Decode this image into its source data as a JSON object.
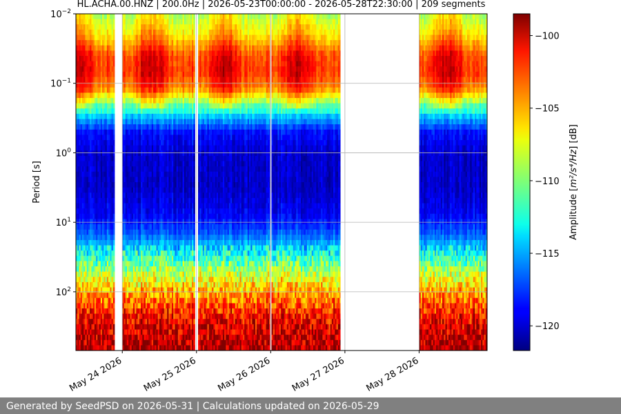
{
  "chart_data": {
    "type": "heatmap",
    "title": "HL.ACHA.00.HNZ | 200.0Hz | 2026-05-23T00:00:00 - 2026-05-28T22:30:00 | 209 segments",
    "ylabel": "Period [s]",
    "xlabel": "",
    "y_scale": "log",
    "y_inverted": true,
    "ylim": [
      0.01,
      700
    ],
    "y_ticks": [
      {
        "value": 0.01,
        "base": "10",
        "exp": "−2"
      },
      {
        "value": 0.1,
        "base": "10",
        "exp": "−1"
      },
      {
        "value": 1,
        "base": "10",
        "exp": "0"
      },
      {
        "value": 10,
        "base": "10",
        "exp": "1"
      },
      {
        "value": 100,
        "base": "10",
        "exp": "2"
      }
    ],
    "xlim": [
      "2026-05-23T09:00",
      "2026-05-28T22:00"
    ],
    "x_ticks": [
      {
        "date": "2026-05-24",
        "label": "May 24 2026"
      },
      {
        "date": "2026-05-25",
        "label": "May 25 2026"
      },
      {
        "date": "2026-05-26",
        "label": "May 26 2026"
      },
      {
        "date": "2026-05-27",
        "label": "May 27 2026"
      },
      {
        "date": "2026-05-28",
        "label": "May 28 2026"
      }
    ],
    "grid": true,
    "data_segments": [
      {
        "start": "2026-05-23T09:00",
        "end": "2026-05-23T21:30"
      },
      {
        "start": "2026-05-24T00:00",
        "end": "2026-05-24T23:30"
      },
      {
        "start": "2026-05-25T00:30",
        "end": "2026-05-25T23:45"
      },
      {
        "start": "2026-05-26T00:15",
        "end": "2026-05-26T22:30"
      },
      {
        "start": "2026-05-28T00:00",
        "end": "2026-05-28T22:00"
      }
    ],
    "colorbar": {
      "label_text": "Amplitude [",
      "label_math": "m²/s⁴/Hz",
      "label_unit": "] [dB]",
      "colormap": "jet",
      "range": [
        -121.7,
        -98.5
      ],
      "ticks": [
        -100,
        -105,
        -110,
        -115,
        -120
      ],
      "tick_labels": [
        "−100",
        "−105",
        "−110",
        "−115",
        "−120"
      ]
    }
  },
  "footer": {
    "text": "Generated by SeedPSD on 2026-05-31 | Calculations updated on 2026-05-29"
  }
}
